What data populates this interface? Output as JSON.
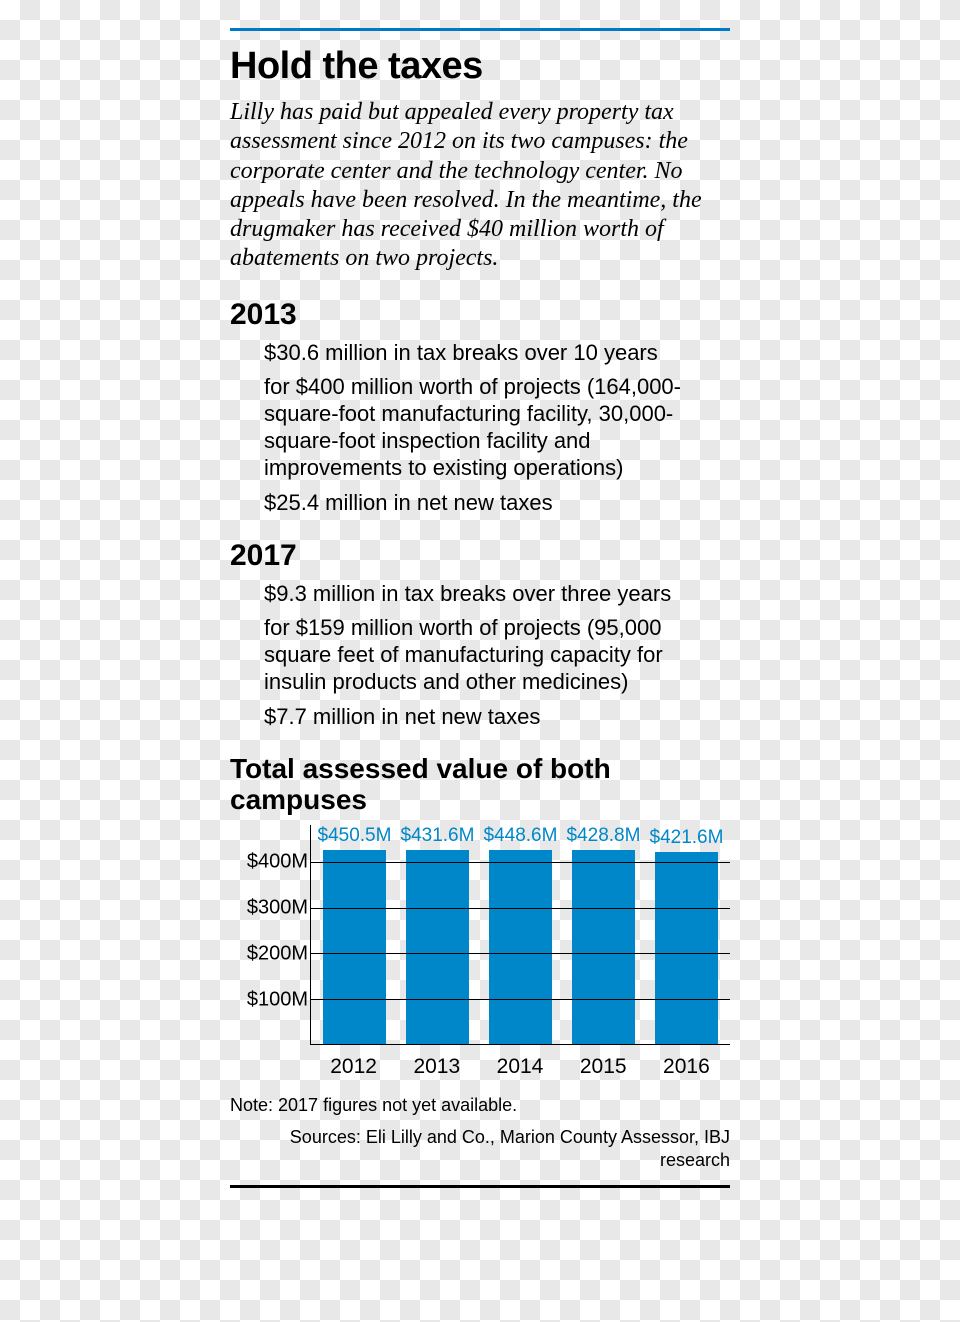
{
  "rule_color": "#0078c8",
  "title": "Hold the taxes",
  "lede": "Lilly has paid but appealed every property tax assessment since 2012 on its two campuses: the corporate center and the technology center. No appeals have been resolved. In the meantime, the drugmaker has received $40 million worth of abatements on two projects.",
  "sections": [
    {
      "year": "2013",
      "items": [
        "$30.6 million in tax breaks over 10 years",
        "for $400 million worth of projects (164,000-square-foot manufacturing facility, 30,000-square-foot inspection facility and improvements to existing operations)",
        "$25.4 million in net new taxes"
      ]
    },
    {
      "year": "2017",
      "items": [
        "$9.3 million in tax breaks over three years",
        "for $159 million worth of projects (95,000 square feet of manufacturing capacity for insulin products and other medicines)",
        "$7.7 million in net new taxes"
      ]
    }
  ],
  "chart": {
    "title": "Total assessed value of both campuses",
    "type": "bar",
    "categories": [
      "2012",
      "2013",
      "2014",
      "2015",
      "2016"
    ],
    "values": [
      450.5,
      431.6,
      448.6,
      428.8,
      421.6
    ],
    "value_labels": [
      "$450.5M",
      "$431.6M",
      "$448.6M",
      "$428.8M",
      "$421.6M"
    ],
    "bar_color": "#0087c9",
    "value_label_color": "#0087c9",
    "y_ticks": [
      100,
      200,
      300,
      400
    ],
    "y_tick_labels": [
      "$100M",
      "$200M",
      "$300M",
      "$400M"
    ],
    "y_max": 480,
    "grid_color": "#000000",
    "axis_color": "#000000",
    "label_fontsize": 20
  },
  "note": "Note: 2017 figures not yet available.",
  "sources": "Sources: Eli Lilly and Co., Marion County Assessor, IBJ research"
}
